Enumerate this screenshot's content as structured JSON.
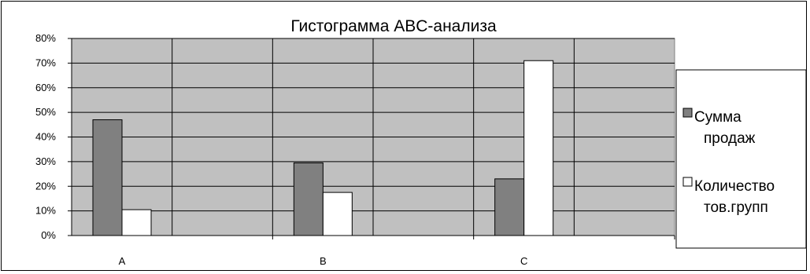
{
  "chart_data": {
    "type": "bar",
    "title": "Гистограмма ABC-анализа",
    "categories": [
      "A",
      "B",
      "C"
    ],
    "series": [
      {
        "name_lines": [
          "Сумма",
          "продаж"
        ],
        "color": "#808080",
        "values": [
          0.47,
          0.295,
          0.23
        ]
      },
      {
        "name_lines": [
          "Количество",
          "тов.групп"
        ],
        "color": "#ffffff",
        "values": [
          0.105,
          0.175,
          0.71
        ]
      }
    ],
    "ylim": [
      0,
      0.8
    ],
    "yticks": [
      0,
      0.1,
      0.2,
      0.3,
      0.4,
      0.5,
      0.6,
      0.7,
      0.8
    ],
    "ytick_labels": [
      "0%",
      "10%",
      "20%",
      "30%",
      "40%",
      "50%",
      "60%",
      "70%",
      "80%"
    ],
    "grid": true,
    "plot_background": "#c0c0c0",
    "legend_position": "right"
  }
}
